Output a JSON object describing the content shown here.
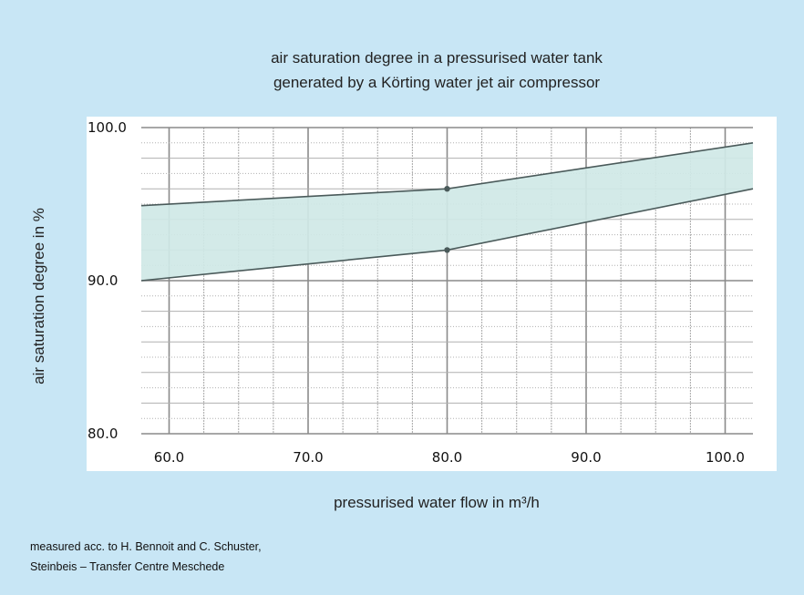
{
  "chart_data": {
    "type": "area",
    "title_lines": [
      "air saturation degree in a pressurised water tank",
      "generated by a Körting water jet air compressor"
    ],
    "xlabel": "pressurised water flow in m³/h",
    "ylabel": "air saturation degree in %",
    "xlim": [
      58,
      102
    ],
    "ylim": [
      80,
      100
    ],
    "x_ticks": [
      "60.0",
      "70.0",
      "80.0",
      "90.0",
      "100.0"
    ],
    "y_ticks": [
      "80.0",
      "90.0",
      "100.0"
    ],
    "grid": true,
    "series": [
      {
        "x": [
          58,
          80,
          102
        ],
        "values": [
          94.9,
          96.0,
          99.0
        ]
      },
      {
        "x": [
          58,
          80,
          102
        ],
        "values": [
          90.0,
          92.0,
          96.0
        ]
      }
    ],
    "markers": [
      {
        "x": 80,
        "y": 96.0
      },
      {
        "x": 80,
        "y": 92.0
      }
    ],
    "colors": {
      "band_fill": "#cfe8e6",
      "line": "#4a5a5a",
      "grid": "#9a9a9a",
      "plot_bg": "#ffffff",
      "page_bg": "#c8e6f5"
    }
  },
  "footer": {
    "line1": "measured acc. to H. Bennoit and C. Schuster,",
    "line2": "Steinbeis – Transfer Centre Meschede"
  }
}
